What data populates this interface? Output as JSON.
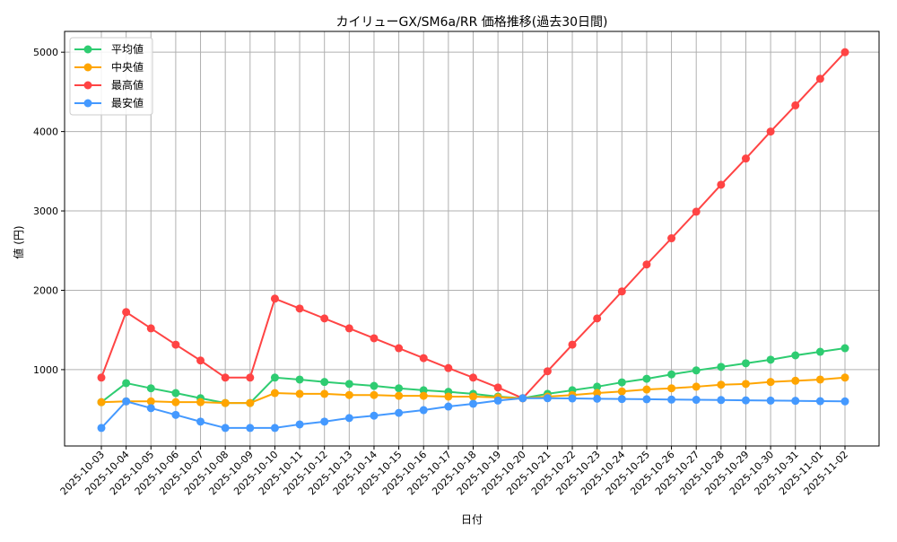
{
  "chart_data": {
    "type": "line",
    "title": "カイリューGX/SM6a/RR 価格推移(過去30日間)",
    "xlabel": "日付",
    "ylabel": "値 (円)",
    "ylim": [
      38,
      5262
    ],
    "yticks": [
      1000,
      2000,
      3000,
      4000,
      5000
    ],
    "grid": true,
    "legend_position": "top-left",
    "categories": [
      "2025-10-03",
      "2025-10-04",
      "2025-10-05",
      "2025-10-06",
      "2025-10-07",
      "2025-10-08",
      "2025-10-09",
      "2025-10-10",
      "2025-10-11",
      "2025-10-12",
      "2025-10-13",
      "2025-10-14",
      "2025-10-15",
      "2025-10-16",
      "2025-10-17",
      "2025-10-18",
      "2025-10-19",
      "2025-10-20",
      "2025-10-21",
      "2025-10-22",
      "2025-10-23",
      "2025-10-24",
      "2025-10-25",
      "2025-10-26",
      "2025-10-27",
      "2025-10-28",
      "2025-10-29",
      "2025-10-30",
      "2025-10-31",
      "2025-11-01",
      "2025-11-02"
    ],
    "series": [
      {
        "name": "平均値",
        "color": "#2ecc71",
        "values": [
          590,
          830,
          765,
          705,
          640,
          580,
          580,
          900,
          875,
          845,
          820,
          795,
          765,
          740,
          720,
          695,
          660,
          640,
          695,
          740,
          785,
          840,
          885,
          940,
          990,
          1035,
          1080,
          1125,
          1180,
          1225,
          1270
        ]
      },
      {
        "name": "中央値",
        "color": "#ffa500",
        "values": [
          590,
          600,
          600,
          590,
          590,
          580,
          580,
          705,
          695,
          695,
          680,
          680,
          670,
          670,
          660,
          660,
          650,
          640,
          660,
          680,
          705,
          725,
          750,
          765,
          785,
          810,
          820,
          845,
          860,
          875,
          900
        ]
      },
      {
        "name": "最高値",
        "color": "#ff4444",
        "values": [
          900,
          1725,
          1520,
          1315,
          1115,
          900,
          900,
          1895,
          1770,
          1645,
          1520,
          1395,
          1270,
          1145,
          1020,
          900,
          775,
          640,
          980,
          1315,
          1645,
          1985,
          2325,
          2655,
          2990,
          3330,
          3660,
          4000,
          4330,
          4665,
          5000
        ]
      },
      {
        "name": "最安値",
        "color": "#4499ff",
        "values": [
          265,
          600,
          515,
          430,
          345,
          265,
          265,
          265,
          310,
          345,
          390,
          420,
          455,
          490,
          535,
          570,
          610,
          640,
          640,
          637,
          633,
          630,
          627,
          623,
          620,
          617,
          613,
          610,
          607,
          603,
          600
        ]
      }
    ]
  }
}
